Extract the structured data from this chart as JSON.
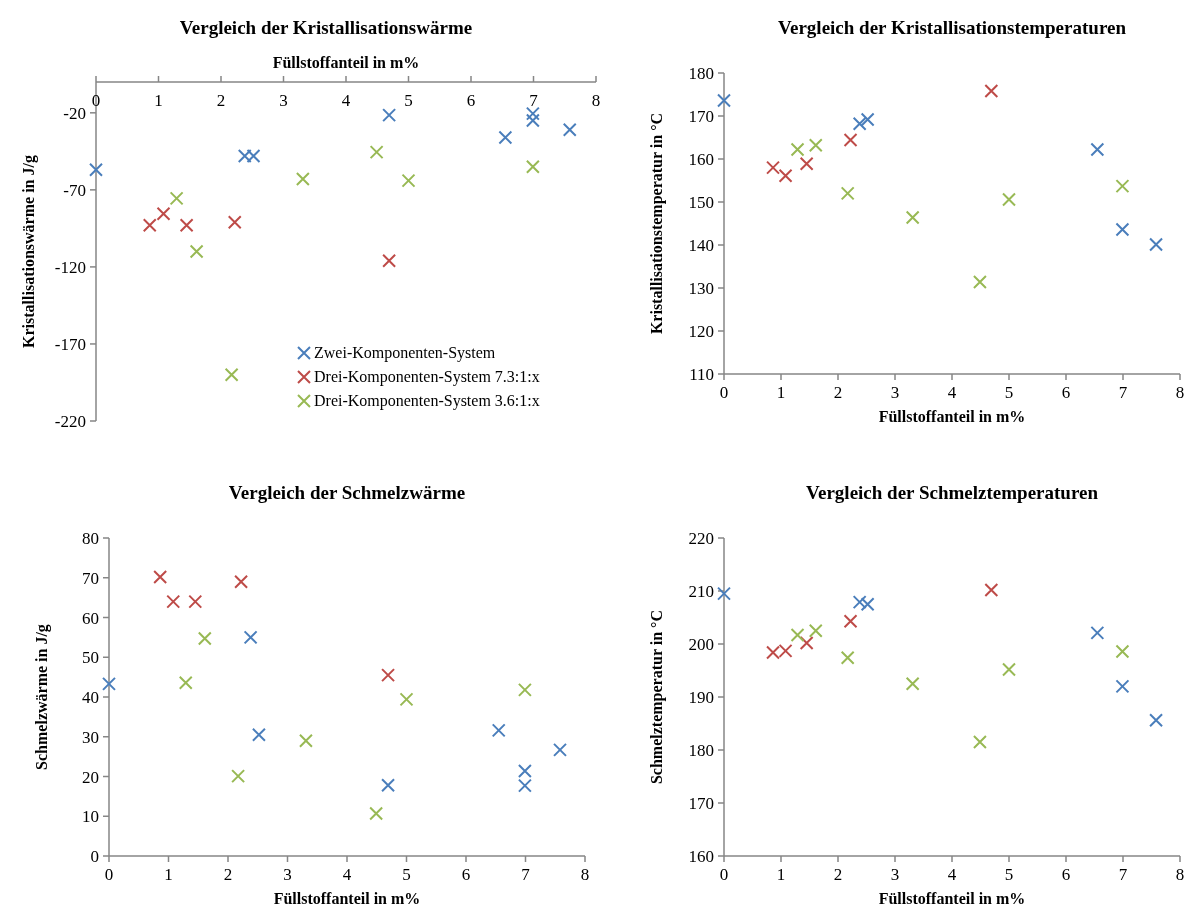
{
  "chart_data": [
    {
      "type": "scatter",
      "title": "Vergleich der Kristallisationswärme",
      "xlabel": "Füllstoffanteil in m%",
      "ylabel": "Kristallisationswärme in J/g",
      "xlim": [
        0,
        8
      ],
      "xticks": [
        0,
        1,
        2,
        3,
        4,
        5,
        6,
        7,
        8
      ],
      "ylim": [
        -220,
        0
      ],
      "yticks": [
        -220,
        -170,
        -120,
        -70,
        -20
      ],
      "marker": "cross",
      "grid": false,
      "legend": "bottom right",
      "series": [
        {
          "name": "Zwei-Komponenten-System",
          "color": "#4a7ebb",
          "x": [
            0,
            2.38,
            2.52,
            4.69,
            6.55,
            6.99,
            6.99,
            7.58
          ],
          "values": [
            -57,
            -48,
            -48,
            -21.5,
            -36,
            -20.5,
            -25,
            -31
          ]
        },
        {
          "name": "Drei-Komponenten-System 7.3:1:x",
          "color": "#be4b48",
          "x": [
            0.86,
            1.08,
            1.45,
            2.22,
            4.69
          ],
          "values": [
            -93,
            -85.5,
            -93,
            -91,
            -116
          ]
        },
        {
          "name": "Drei-Komponenten-System 3.6:1:x",
          "color": "#98b954",
          "x": [
            1.29,
            1.61,
            2.17,
            3.31,
            4.49,
            5.0,
            6.99
          ],
          "values": [
            -75.5,
            -110,
            -190,
            -63,
            -45.5,
            -64,
            -55
          ]
        }
      ]
    },
    {
      "type": "scatter",
      "title": "Vergleich der Kristallisationstemperaturen",
      "xlabel": "Füllstoffanteil in m%",
      "ylabel": "Kristallisationstemperatur in °C",
      "xlim": [
        0,
        8
      ],
      "xticks": [
        0,
        1,
        2,
        3,
        4,
        5,
        6,
        7,
        8
      ],
      "ylim": [
        110,
        180
      ],
      "yticks": [
        110,
        120,
        130,
        140,
        150,
        160,
        170,
        180
      ],
      "marker": "cross",
      "grid": false,
      "legend": false,
      "series": [
        {
          "color": "#4a7ebb",
          "x": [
            0,
            2.38,
            2.52,
            6.55,
            6.99,
            7.58
          ],
          "values": [
            173.6,
            168.2,
            169.2,
            162.2,
            143.6,
            140.1
          ]
        },
        {
          "color": "#be4b48",
          "x": [
            0.86,
            1.08,
            1.45,
            2.22,
            4.69
          ],
          "values": [
            158.0,
            156.1,
            158.9,
            164.4,
            175.8
          ]
        },
        {
          "color": "#98b954",
          "x": [
            1.29,
            1.61,
            2.17,
            3.31,
            4.49,
            5.0,
            6.99
          ],
          "values": [
            162.2,
            163.2,
            152.0,
            146.4,
            131.4,
            150.6,
            153.7
          ]
        }
      ]
    },
    {
      "type": "scatter",
      "title": "Vergleich der Schmelzwärme",
      "xlabel": "Füllstoffanteil in m%",
      "ylabel": "Schmelzwärme in J/g",
      "xlim": [
        0,
        8
      ],
      "xticks": [
        0,
        1,
        2,
        3,
        4,
        5,
        6,
        7,
        8
      ],
      "ylim": [
        0,
        80
      ],
      "yticks": [
        0,
        10,
        20,
        30,
        40,
        50,
        60,
        70,
        80
      ],
      "marker": "cross",
      "grid": false,
      "legend": false,
      "series": [
        {
          "color": "#4a7ebb",
          "x": [
            0,
            2.38,
            2.52,
            4.69,
            6.55,
            6.99,
            6.99,
            7.58
          ],
          "values": [
            43.3,
            55.0,
            30.5,
            17.8,
            31.6,
            21.4,
            17.7,
            26.7
          ]
        },
        {
          "color": "#be4b48",
          "x": [
            0.86,
            1.08,
            1.45,
            2.22,
            4.69
          ],
          "values": [
            70.2,
            64.0,
            64.0,
            69.0,
            45.5
          ]
        },
        {
          "color": "#98b954",
          "x": [
            1.29,
            1.61,
            2.17,
            3.31,
            4.49,
            5.0,
            6.99
          ],
          "values": [
            43.6,
            54.7,
            20.1,
            29.0,
            10.7,
            39.4,
            41.8
          ]
        }
      ]
    },
    {
      "type": "scatter",
      "title": "Vergleich der Schmelztemperaturen",
      "xlabel": "Füllstoffanteil in m%",
      "ylabel": "Schmelztemperatur in °C",
      "xlim": [
        0,
        8
      ],
      "xticks": [
        0,
        1,
        2,
        3,
        4,
        5,
        6,
        7,
        8
      ],
      "ylim": [
        160,
        220
      ],
      "yticks": [
        160,
        170,
        180,
        190,
        200,
        210,
        220
      ],
      "marker": "cross",
      "grid": false,
      "legend": false,
      "series": [
        {
          "color": "#4a7ebb",
          "x": [
            0,
            2.38,
            2.52,
            6.55,
            6.99,
            7.58
          ],
          "values": [
            209.5,
            207.9,
            207.5,
            202.1,
            192.0,
            185.6
          ]
        },
        {
          "color": "#be4b48",
          "x": [
            0.86,
            1.08,
            1.45,
            2.22,
            4.69
          ],
          "values": [
            198.4,
            198.7,
            200.2,
            204.3,
            210.2
          ]
        },
        {
          "color": "#98b954",
          "x": [
            1.29,
            1.61,
            2.17,
            3.31,
            4.49,
            5.0,
            6.99
          ],
          "values": [
            201.7,
            202.5,
            197.4,
            192.5,
            181.5,
            195.2,
            198.6
          ]
        }
      ]
    }
  ]
}
